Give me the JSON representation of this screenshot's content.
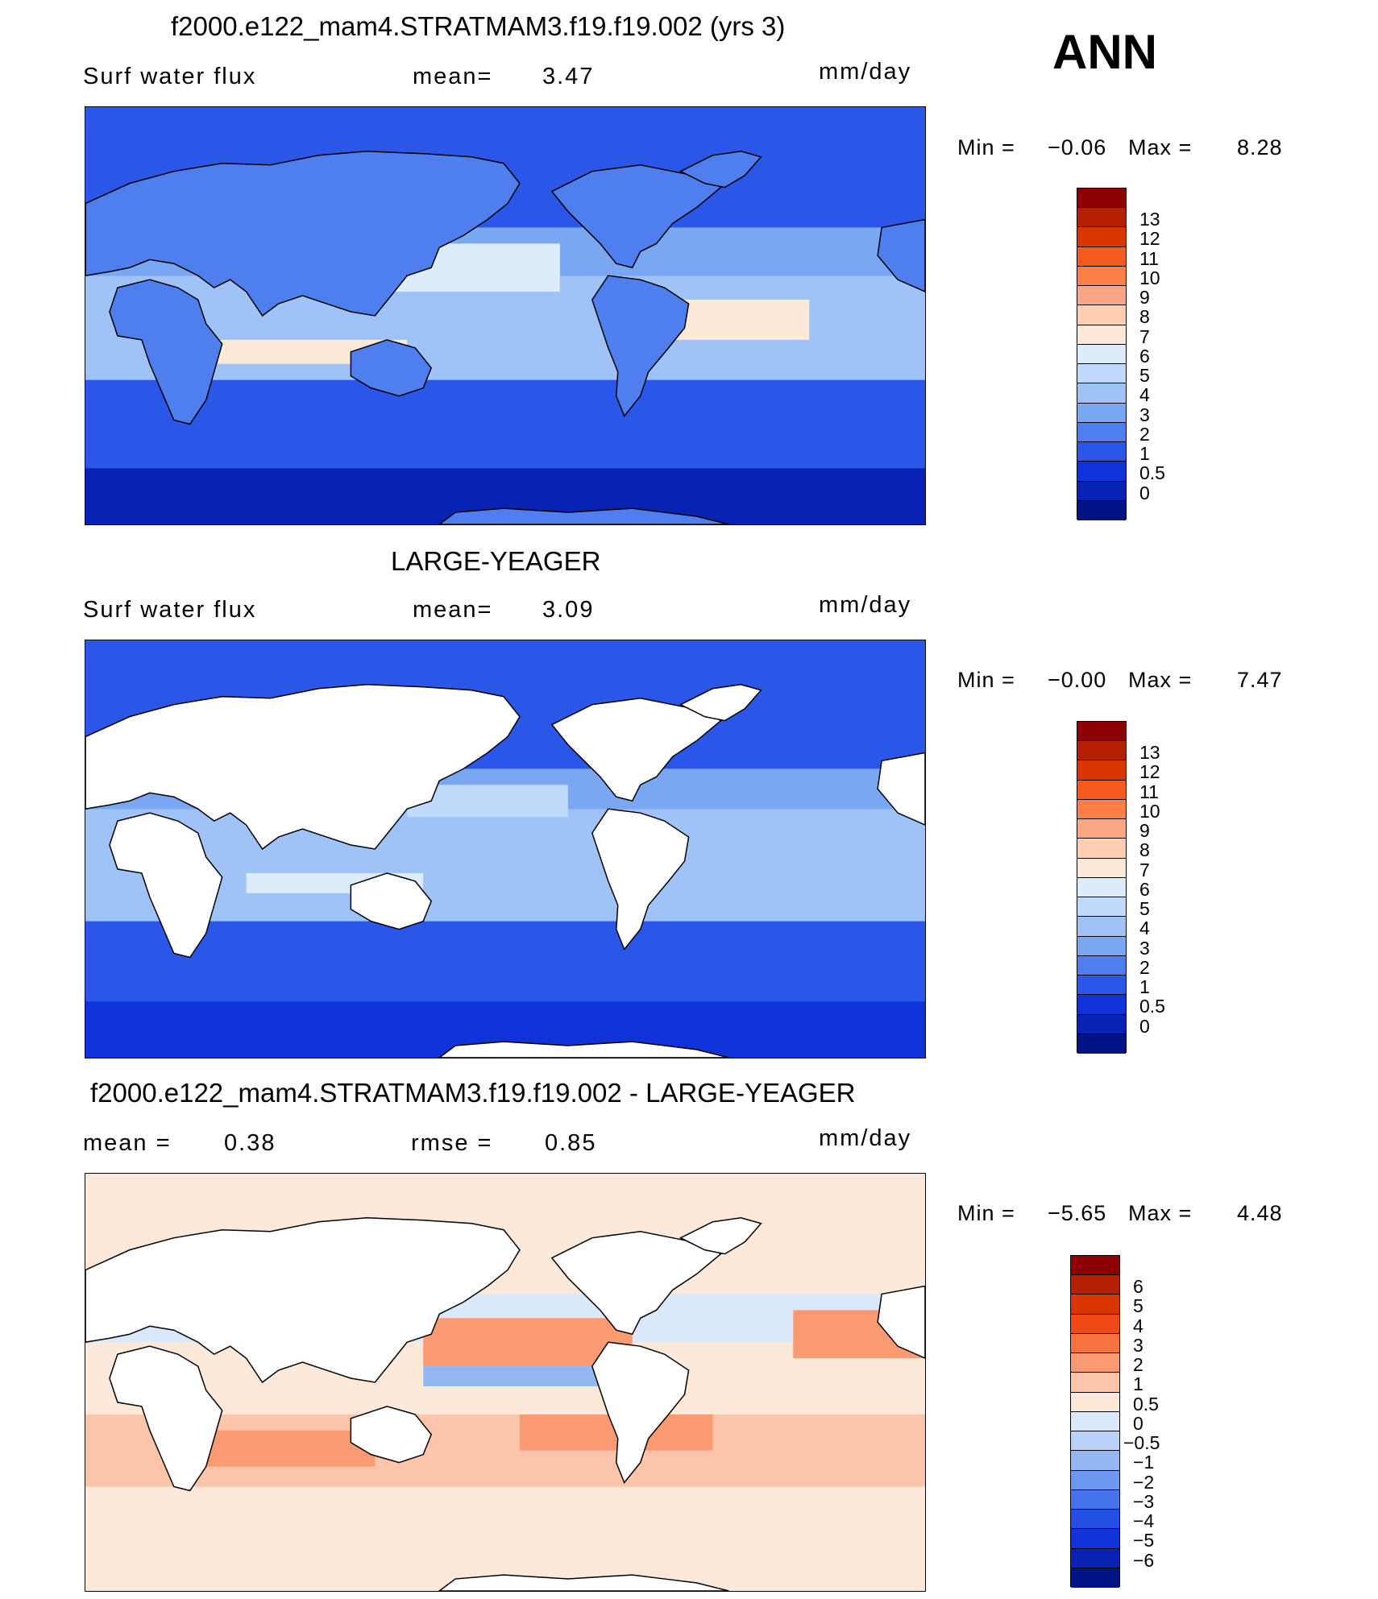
{
  "season": "ANN",
  "panels": [
    {
      "title": "f2000.e122_mam4.STRATMAM3.f19.f19.002 (yrs 3)",
      "left_label": "Surf water flux",
      "mid_label": "mean=",
      "mid_value": "3.47",
      "units": "mm/day",
      "min_label": "Min =",
      "min_value": "−0.06",
      "max_label": "Max =",
      "max_value": "8.28",
      "palette": [
        "#8b0000",
        "#b32000",
        "#d93500",
        "#f55a1e",
        "#fb7f46",
        "#fca784",
        "#fdcfb0",
        "#fde9d9",
        "#dcecfb",
        "#c1d9fa",
        "#9fc2f7",
        "#7aa7f2",
        "#4f7eef",
        "#2b57e8",
        "#0f33d8",
        "#0822b3",
        "#011285"
      ],
      "colorbar_ticks": [
        "13",
        "12",
        "11",
        "10",
        "9",
        "8",
        "7",
        "6",
        "5",
        "4",
        "3",
        "2",
        "1",
        "0.5",
        "0"
      ],
      "land_filled": true
    },
    {
      "title": "LARGE-YEAGER",
      "left_label": "Surf water flux",
      "mid_label": "mean=",
      "mid_value": "3.09",
      "units": "mm/day",
      "min_label": "Min =",
      "min_value": "−0.00",
      "max_label": "Max =",
      "max_value": "7.47",
      "palette": [
        "#8b0000",
        "#b32000",
        "#d93500",
        "#f55a1e",
        "#fb7f46",
        "#fca784",
        "#fdcfb0",
        "#fde9d9",
        "#dcecfb",
        "#c1d9fa",
        "#9fc2f7",
        "#7aa7f2",
        "#4f7eef",
        "#2b57e8",
        "#0f33d8",
        "#0822b3",
        "#011285"
      ],
      "colorbar_ticks": [
        "13",
        "12",
        "11",
        "10",
        "9",
        "8",
        "7",
        "6",
        "5",
        "4",
        "3",
        "2",
        "1",
        "0.5",
        "0"
      ],
      "land_filled": false
    },
    {
      "title": "f2000.e122_mam4.STRATMAM3.f19.f19.002 - LARGE-YEAGER",
      "left_label": "mean =",
      "left_value": "0.38",
      "mid_label": "rmse =",
      "mid_value": "0.85",
      "units": "mm/day",
      "min_label": "Min =",
      "min_value": "−5.65",
      "max_label": "Max =",
      "max_value": "4.48",
      "palette": [
        "#8b0000",
        "#b32000",
        "#d93500",
        "#f04a17",
        "#f7743e",
        "#fa9a73",
        "#fcc4a8",
        "#fde9d9",
        "#d9e8fb",
        "#b8d2f9",
        "#95b8f5",
        "#6f98f0",
        "#4674ec",
        "#2450e6",
        "#0f33d8",
        "#0822b3",
        "#011285"
      ],
      "colorbar_ticks": [
        "6",
        "5",
        "4",
        "3",
        "2",
        "1",
        "0.5",
        "0",
        "−0.5",
        "−1",
        "−2",
        "−3",
        "−4",
        "−5",
        "−6"
      ],
      "land_filled": false
    }
  ]
}
